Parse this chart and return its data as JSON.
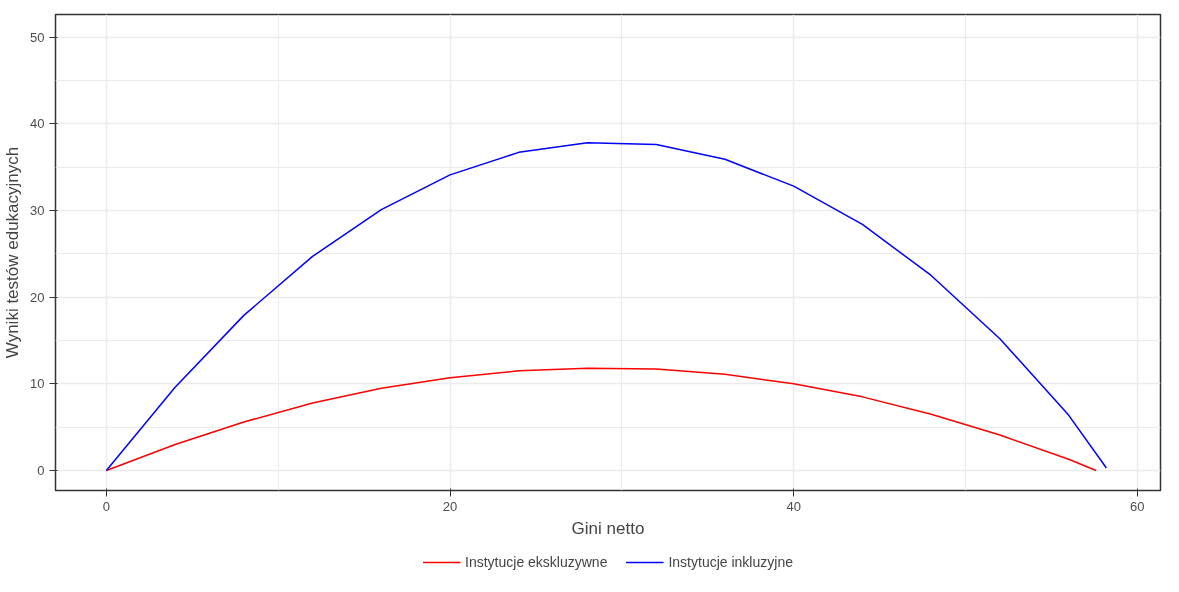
{
  "chart_data": {
    "type": "line",
    "xlabel": "Gini netto",
    "ylabel": "Wyniki testów edukacyjnych",
    "xlim": [
      -2.96,
      61.35
    ],
    "ylim": [
      -2.3,
      52.6
    ],
    "xticks": [
      0,
      20,
      40,
      60
    ],
    "yticks": [
      0,
      10,
      20,
      30,
      40,
      50
    ],
    "grid": true,
    "legend": "bottom",
    "series": [
      {
        "name": "Instytucje ekskluzywne",
        "color": "#ff0000",
        "x": [
          0,
          4,
          8,
          12,
          16,
          20,
          24,
          28,
          32,
          36,
          40,
          44,
          48,
          52,
          56,
          57.6
        ],
        "values": [
          0,
          3.0,
          5.6,
          7.8,
          9.5,
          10.7,
          11.5,
          11.8,
          11.7,
          11.1,
          10.0,
          8.5,
          6.5,
          4.1,
          1.3,
          0
        ]
      },
      {
        "name": "Instytucje inkluzyjne",
        "color": "#0000ff",
        "x": [
          0,
          4,
          8,
          12,
          16,
          20,
          24,
          28,
          32,
          36,
          40,
          44,
          48,
          52,
          56,
          58.2
        ],
        "values": [
          0,
          9.6,
          17.9,
          24.7,
          30.1,
          34.1,
          36.7,
          37.8,
          37.6,
          35.9,
          32.8,
          28.4,
          22.5,
          15.2,
          6.4,
          0.3
        ]
      }
    ]
  }
}
